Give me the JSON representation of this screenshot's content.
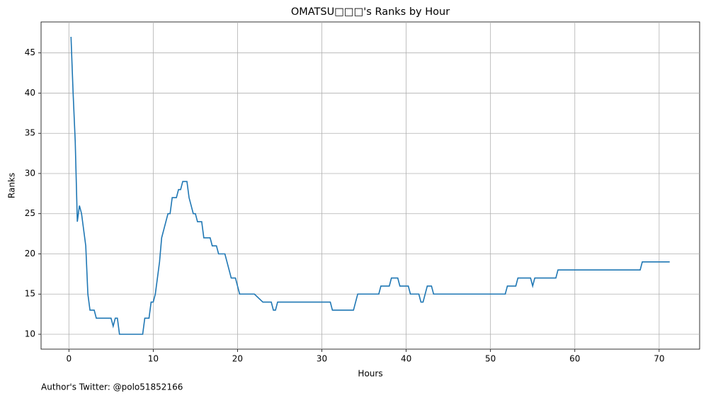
{
  "chart_data": {
    "type": "line",
    "title": "OMATSU□□□'s Ranks by Hour",
    "x_label": "Hours",
    "y_label": "Ranks",
    "footnote": "Author's Twitter: @polo51852166",
    "grid": true,
    "color": "#1f77b4",
    "xlim": [
      -3.3,
      74.8
    ],
    "ylim": [
      8.15,
      48.85
    ],
    "xticks": [
      0,
      10,
      20,
      30,
      40,
      50,
      60,
      70
    ],
    "yticks": [
      10,
      15,
      20,
      25,
      30,
      35,
      40,
      45
    ],
    "x": [
      0.25,
      0.5,
      0.75,
      1,
      1.25,
      1.5,
      1.75,
      2,
      2.25,
      2.5,
      3,
      3.25,
      5,
      5.25,
      5.5,
      5.75,
      6,
      8.75,
      9,
      9.5,
      9.75,
      10,
      10.25,
      10.5,
      10.75,
      11,
      11.5,
      11.75,
      12,
      12.25,
      12.75,
      13,
      13.25,
      13.5,
      14,
      14.25,
      14.75,
      15,
      15.25,
      15.75,
      16,
      16.75,
      17,
      17.5,
      17.75,
      18.5,
      19.25,
      19.75,
      20,
      20.25,
      22,
      23,
      24,
      24.25,
      24.5,
      24.75,
      31,
      31.25,
      33.75,
      34.25,
      36.75,
      37,
      38,
      38.25,
      39,
      39.25,
      40.25,
      40.5,
      41.5,
      41.75,
      42,
      42.5,
      43,
      43.25,
      51.75,
      52,
      53,
      53.25,
      54.75,
      55,
      55.25,
      57.75,
      58,
      67.75,
      68,
      71.25
    ],
    "values": [
      47,
      40,
      34,
      24,
      26,
      25,
      23,
      21,
      15,
      13,
      13,
      12,
      12,
      11,
      12,
      12,
      10,
      10,
      12,
      12,
      14,
      14,
      15,
      17,
      19,
      22,
      24,
      25,
      25,
      27,
      27,
      28,
      28,
      29,
      29,
      27,
      25,
      25,
      24,
      24,
      22,
      22,
      21,
      21,
      20,
      20,
      17,
      17,
      16,
      15,
      15,
      14,
      14,
      13,
      13,
      14,
      14,
      13,
      13,
      15,
      15,
      16,
      16,
      17,
      17,
      16,
      16,
      15,
      15,
      14,
      14,
      16,
      16,
      15,
      15,
      16,
      16,
      17,
      17,
      16,
      17,
      17,
      18,
      18,
      19,
      19
    ]
  }
}
